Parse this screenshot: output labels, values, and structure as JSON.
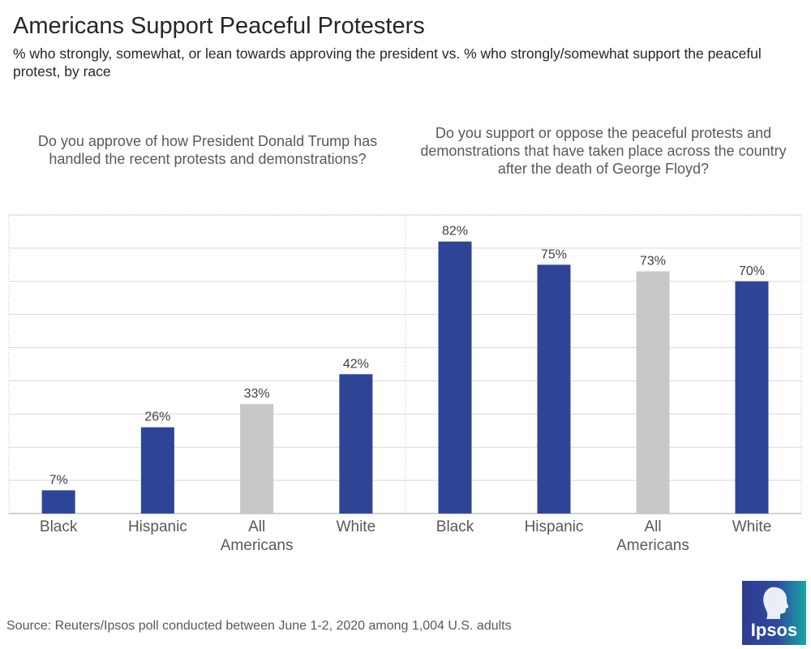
{
  "title": "Americans Support Peaceful Protesters",
  "subtitle": "% who strongly, somewhat, or lean towards approving the president vs. % who strongly/somewhat support the peaceful protest, by race",
  "questions": {
    "left": "Do you approve of how President Donald Trump has handled the recent protests and demonstrations?",
    "right": "Do you support or oppose the peaceful protests and demonstrations that have taken place across the country after the death of George Floyd?"
  },
  "source": "Source: Reuters/Ipsos poll conducted between June 1-2, 2020 among 1,004 U.S. adults",
  "logo": {
    "text": "Ipsos",
    "icon": "ipsos-head-icon"
  },
  "colors": {
    "primary": "#2e4597",
    "highlight": "#c8c8c8",
    "grid": "#d9d9d9",
    "label": "#404040"
  },
  "chart_data": [
    {
      "type": "bar",
      "title": "Do you approve of how President Donald Trump has handled the recent protests and demonstrations?",
      "categories": [
        "Black",
        "Hispanic",
        "All Americans",
        "White"
      ],
      "values": [
        7,
        26,
        33,
        42
      ],
      "labels": [
        "7%",
        "26%",
        "33%",
        "42%"
      ],
      "highlight": [
        false,
        false,
        true,
        false
      ],
      "ylim": [
        0,
        90
      ],
      "grid": true
    },
    {
      "type": "bar",
      "title": "Do you support or oppose the peaceful protests and demonstrations that have taken place across the country after the death of George Floyd?",
      "categories": [
        "Black",
        "Hispanic",
        "All Americans",
        "White"
      ],
      "values": [
        82,
        75,
        73,
        70
      ],
      "labels": [
        "82%",
        "75%",
        "73%",
        "70%"
      ],
      "highlight": [
        false,
        false,
        true,
        false
      ],
      "ylim": [
        0,
        90
      ],
      "grid": true
    }
  ]
}
